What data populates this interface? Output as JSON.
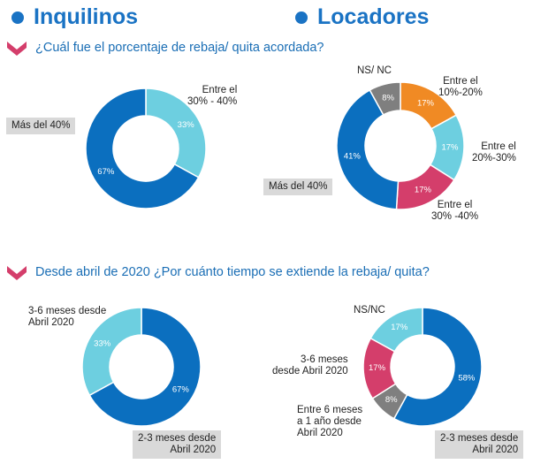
{
  "headers": [
    "Inquilinos",
    "Locadores"
  ],
  "questions": [
    "¿Cuál fue el porcentaje de rebaja/ quita acordada?",
    "Desde abril de 2020 ¿Por cuánto tiempo se extiende la rebaja/ quita?"
  ],
  "chart_data": [
    {
      "type": "donut",
      "categories": [
        "Entre el\n30% - 40%",
        "Más del 40%"
      ],
      "values": [
        33,
        67
      ],
      "value_labels": [
        "33%",
        "67%"
      ],
      "colors": [
        "#6dcfe0",
        "#0b6fbf"
      ]
    },
    {
      "type": "donut",
      "categories": [
        "Entre el\n10%-20%",
        "Entre el\n20%-30%",
        "Entre el\n30% -40%",
        "Más del 40%",
        "NS/ NC"
      ],
      "values": [
        17,
        17,
        17,
        41,
        8
      ],
      "value_labels": [
        "17%",
        "17%",
        "17%",
        "41%",
        "8%"
      ],
      "colors": [
        "#f08a24",
        "#6dcfe0",
        "#d43e6b",
        "#0b6fbf",
        "#7f7f7f"
      ]
    },
    {
      "type": "donut",
      "categories": [
        "2-3 meses desde\nAbril 2020",
        "3-6 meses desde\nAbril 2020"
      ],
      "values": [
        67,
        33
      ],
      "value_labels": [
        "67%",
        "33%"
      ],
      "colors": [
        "#0b6fbf",
        "#6dcfe0"
      ]
    },
    {
      "type": "donut",
      "categories": [
        "2-3 meses desde\nAbril 2020",
        "Entre 6 meses\na 1 año desde\nAbril 2020",
        "3-6 meses\ndesde Abril 2020",
        "NS/NC"
      ],
      "values": [
        58,
        8,
        17,
        17
      ],
      "value_labels": [
        "58%",
        "8%",
        "17%",
        "17%"
      ],
      "colors": [
        "#0b6fbf",
        "#7f7f7f",
        "#d43e6b",
        "#6dcfe0"
      ]
    }
  ]
}
